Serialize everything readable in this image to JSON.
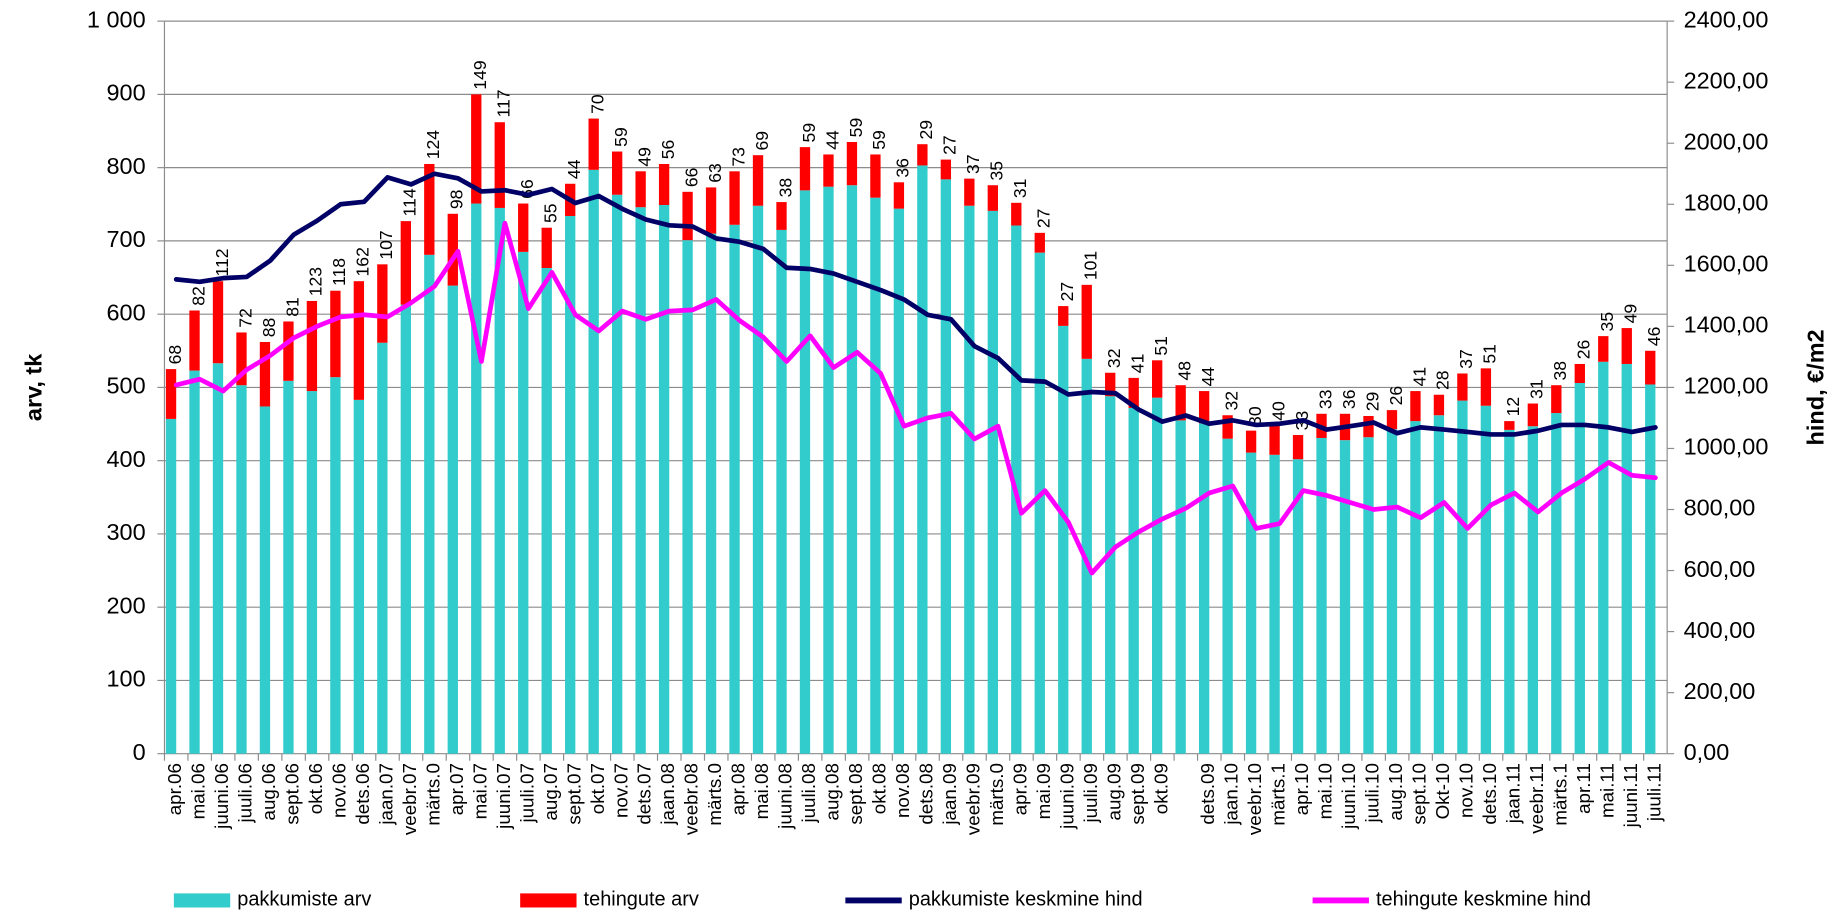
{
  "chart_data": {
    "type": "bar",
    "stacked": true,
    "y_label": "arv, tk",
    "y2_label": "hind, €/m2",
    "categories": [
      "apr.06",
      "mai.06",
      "juuni.06",
      "juuli.06",
      "aug.06",
      "sept.06",
      "okt.06",
      "nov.06",
      "dets.06",
      "jaan.07",
      "veebr.07",
      "märts.0",
      "apr.07",
      "mai.07",
      "juuni.07",
      "juuli.07",
      "aug.07",
      "sept.07",
      "okt.07",
      "nov.07",
      "dets.07",
      "jaan.08",
      "veebr.08",
      "märts.0",
      "apr.08",
      "mai.08",
      "juuni.08",
      "juuli.08",
      "aug.08",
      "sept.08",
      "okt.08",
      "nov.08",
      "dets.08",
      "jaan.09",
      "veebr.09",
      "märts.0",
      "apr.09",
      "mai.09",
      "juuni.09",
      "juuli.09",
      "aug.09",
      "sept.09",
      "okt.09",
      null,
      "dets.09",
      "jaan.10",
      "veebr.10",
      "märts.1",
      "apr.10",
      "mai.10",
      "juuni.10",
      "juuli.10",
      "aug.10",
      "sept.10",
      "Okt-10",
      "nov.10",
      "dets.10",
      "jaan.11",
      "veebr.11",
      "märts.1",
      "apr.11",
      "mai.11",
      "juuni.11",
      "juuli.11"
    ],
    "series": [
      {
        "name": "pakkumiste arv",
        "type": "bar",
        "color": "#33CCCC",
        "values": [
          457,
          523,
          533,
          503,
          474,
          509,
          495,
          514,
          483,
          561,
          613,
          681,
          639,
          751,
          745,
          685,
          663,
          734,
          797,
          763,
          746,
          749,
          701,
          710,
          722,
          748,
          715,
          769,
          774,
          776,
          759,
          744,
          803,
          784,
          748,
          741,
          721,
          684,
          584,
          539,
          488,
          472,
          486,
          455,
          451,
          430,
          411,
          408,
          402,
          431,
          428,
          432,
          443,
          454,
          462,
          482,
          475,
          442,
          447,
          465,
          506,
          535,
          532,
          504
        ]
      },
      {
        "name": "tehingute arv",
        "type": "bar",
        "color": "#FF0000",
        "data_labels": true,
        "values": [
          68,
          82,
          112,
          72,
          88,
          81,
          123,
          118,
          162,
          107,
          114,
          124,
          98,
          149,
          117,
          66,
          55,
          44,
          70,
          59,
          49,
          56,
          66,
          63,
          73,
          69,
          38,
          59,
          44,
          59,
          59,
          36,
          29,
          27,
          37,
          35,
          31,
          27,
          27,
          101,
          32,
          41,
          51,
          48,
          44,
          32,
          30,
          40,
          33,
          33,
          36,
          29,
          26,
          41,
          28,
          37,
          51,
          12,
          31,
          38,
          26,
          35,
          49,
          46
        ]
      },
      {
        "name": "pakkumiste keskmine hind",
        "type": "line",
        "axis": "y2",
        "color": "#000066",
        "values": [
          1554,
          1546,
          1558,
          1562,
          1615,
          1700,
          1746,
          1800,
          1808,
          1888,
          1865,
          1900,
          1885,
          1842,
          1846,
          1831,
          1850,
          1804,
          1827,
          1785,
          1750,
          1731,
          1727,
          1688,
          1677,
          1654,
          1592,
          1588,
          1573,
          1546,
          1519,
          1488,
          1438,
          1423,
          1335,
          1296,
          1223,
          1219,
          1177,
          1185,
          1181,
          1127,
          1088,
          1108,
          1081,
          1092,
          1077,
          1081,
          1092,
          1062,
          1073,
          1085,
          1050,
          1069,
          1062,
          1054,
          1046,
          1046,
          1058,
          1077,
          1077,
          1069,
          1054,
          1069
        ]
      },
      {
        "name": "tehingute keskmine hind",
        "type": "line",
        "axis": "y2",
        "color": "#FF00FF",
        "values": [
          1208,
          1227,
          1188,
          1258,
          1304,
          1362,
          1400,
          1431,
          1438,
          1431,
          1477,
          1531,
          1646,
          1285,
          1738,
          1458,
          1577,
          1438,
          1385,
          1450,
          1423,
          1450,
          1454,
          1488,
          1419,
          1365,
          1285,
          1369,
          1265,
          1315,
          1246,
          1073,
          1100,
          1115,
          1031,
          1073,
          788,
          862,
          758,
          592,
          677,
          727,
          769,
          804,
          854,
          877,
          738,
          754,
          862,
          846,
          823,
          800,
          808,
          773,
          823,
          738,
          815,
          854,
          792,
          854,
          900,
          954,
          912,
          904
        ]
      }
    ],
    "ylim": [
      0,
      1000
    ],
    "yticks": [
      0,
      100,
      200,
      300,
      400,
      500,
      600,
      700,
      800,
      900,
      {
        "value": 1000,
        "label": "1 000"
      }
    ],
    "y2lim": [
      0,
      2400
    ],
    "y2ticks": [
      {
        "value": 0,
        "label": "0,00"
      },
      {
        "value": 200,
        "label": "200,00"
      },
      {
        "value": 400,
        "label": "400,00"
      },
      {
        "value": 600,
        "label": "600,00"
      },
      {
        "value": 800,
        "label": "800,00"
      },
      {
        "value": 1000,
        "label": "1000,00"
      },
      {
        "value": 1200,
        "label": "1200,00"
      },
      {
        "value": 1400,
        "label": "1400,00"
      },
      {
        "value": 1600,
        "label": "1600,00"
      },
      {
        "value": 1800,
        "label": "1800,00"
      },
      {
        "value": 2000,
        "label": "2000,00"
      },
      {
        "value": 2200,
        "label": "2200,00"
      },
      {
        "value": 2400,
        "label": "2400,00"
      }
    ],
    "grid": true,
    "legend": "bottom"
  }
}
